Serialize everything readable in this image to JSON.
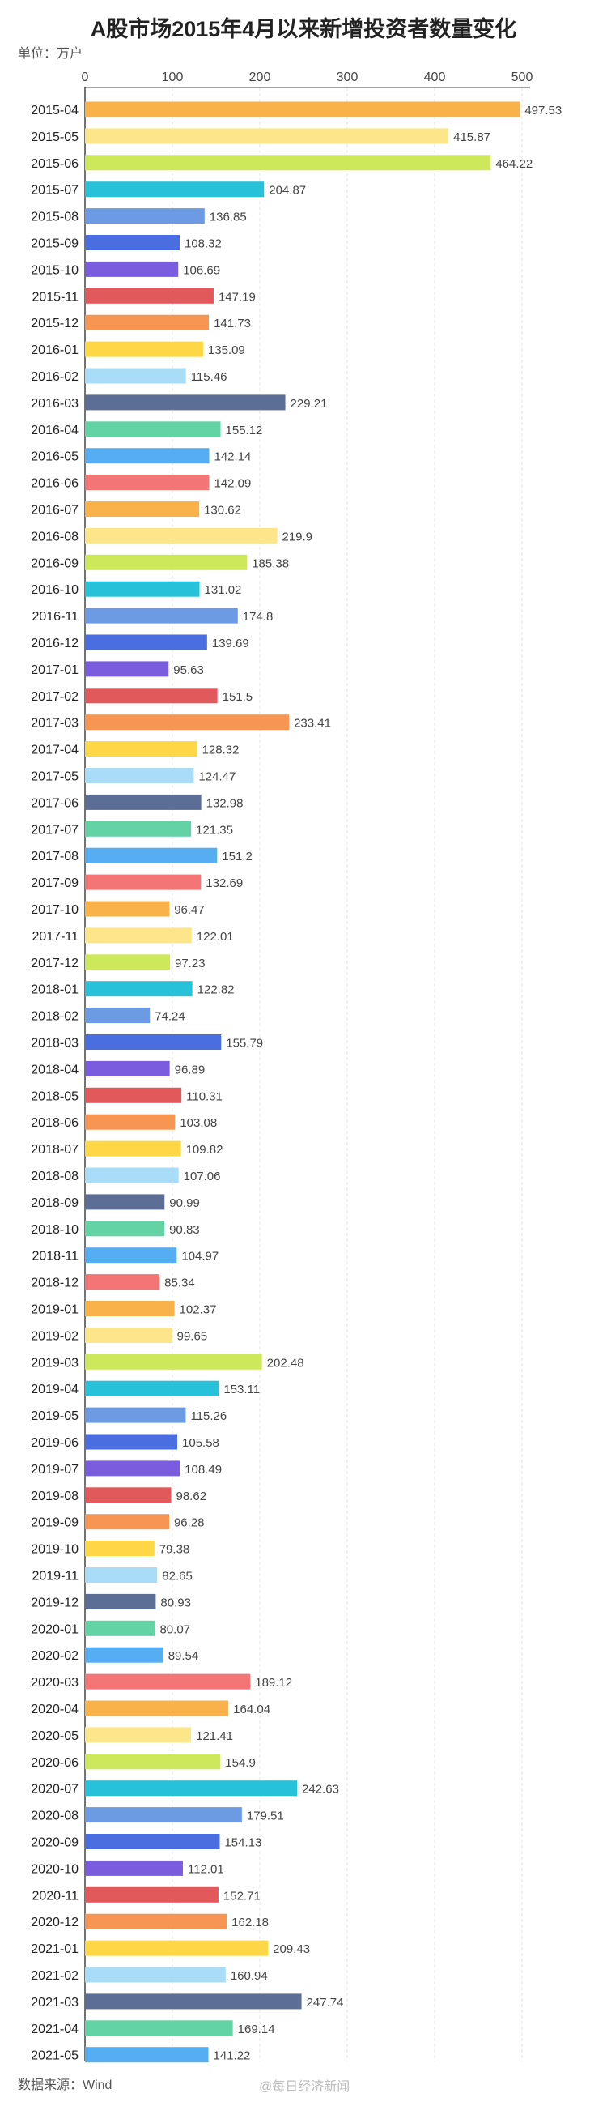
{
  "header": {
    "title": "A股市场2015年4月以来新增投资者数量变化",
    "unit": "单位：万户"
  },
  "footer": {
    "source": "数据来源：Wind",
    "watermark": "@每日经济新闻"
  },
  "colors": {
    "palette": [
      "#f9b24a",
      "#fde68a",
      "#cde85b",
      "#27c1d9",
      "#6c9be3",
      "#4a6de0",
      "#7a5ddf",
      "#e2595b",
      "#f79552",
      "#fdd746",
      "#a8dcf7",
      "#5c6e96",
      "#63d3a6",
      "#56aef2",
      "#f47575"
    ],
    "grid": "#e6e6e6",
    "axis": "#444444"
  },
  "chart_data": {
    "type": "bar",
    "orientation": "horizontal",
    "title": "A股市场2015年4月以来新增投资者数量变化",
    "xlim": [
      0,
      500
    ],
    "xticks": [
      0,
      100,
      200,
      300,
      400,
      500
    ],
    "grid": true,
    "categories": [
      "2015-04",
      "2015-05",
      "2015-06",
      "2015-07",
      "2015-08",
      "2015-09",
      "2015-10",
      "2015-11",
      "2015-12",
      "2016-01",
      "2016-02",
      "2016-03",
      "2016-04",
      "2016-05",
      "2016-06",
      "2016-07",
      "2016-08",
      "2016-09",
      "2016-10",
      "2016-11",
      "2016-12",
      "2017-01",
      "2017-02",
      "2017-03",
      "2017-04",
      "2017-05",
      "2017-06",
      "2017-07",
      "2017-08",
      "2017-09",
      "2017-10",
      "2017-11",
      "2017-12",
      "2018-01",
      "2018-02",
      "2018-03",
      "2018-04",
      "2018-05",
      "2018-06",
      "2018-07",
      "2018-08",
      "2018-09",
      "2018-10",
      "2018-11",
      "2018-12",
      "2019-01",
      "2019-02",
      "2019-03",
      "2019-04",
      "2019-05",
      "2019-06",
      "2019-07",
      "2019-08",
      "2019-09",
      "2019-10",
      "2019-11",
      "2019-12",
      "2020-01",
      "2020-02",
      "2020-03",
      "2020-04",
      "2020-05",
      "2020-06",
      "2020-07",
      "2020-08",
      "2020-09",
      "2020-10",
      "2020-11",
      "2020-12",
      "2021-01",
      "2021-02",
      "2021-03",
      "2021-04",
      "2021-05"
    ],
    "values": [
      497.53,
      415.87,
      464.22,
      204.87,
      136.85,
      108.32,
      106.69,
      147.19,
      141.73,
      135.09,
      115.46,
      229.21,
      155.12,
      142.14,
      142.09,
      130.62,
      219.9,
      185.38,
      131.02,
      174.8,
      139.69,
      95.63,
      151.5,
      233.41,
      128.32,
      124.47,
      132.98,
      121.35,
      151.2,
      132.69,
      96.47,
      122.01,
      97.23,
      122.82,
      74.24,
      155.79,
      96.89,
      110.31,
      103.08,
      109.82,
      107.06,
      90.99,
      90.83,
      104.97,
      85.34,
      102.37,
      99.65,
      202.48,
      153.11,
      115.26,
      105.58,
      108.49,
      98.62,
      96.28,
      79.38,
      82.65,
      80.93,
      80.07,
      89.54,
      189.12,
      164.04,
      121.41,
      154.9,
      242.63,
      179.51,
      154.13,
      112.01,
      152.71,
      162.18,
      209.43,
      160.94,
      247.74,
      169.14,
      141.22
    ]
  }
}
